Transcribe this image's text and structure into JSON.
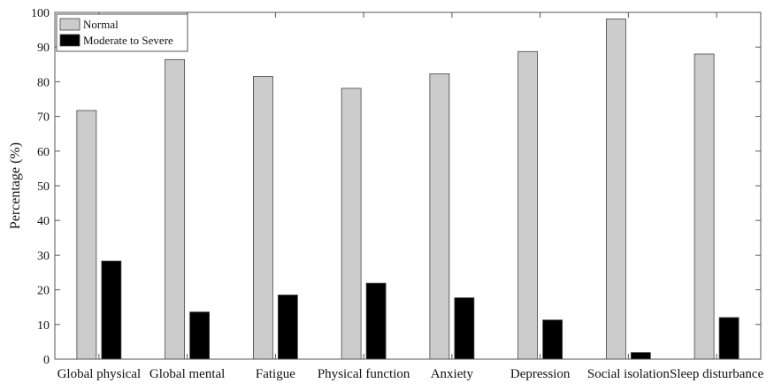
{
  "chart_data": {
    "type": "bar",
    "title": "",
    "xlabel": "",
    "ylabel": "Percentage (%)",
    "ylim": [
      0,
      100
    ],
    "yticks": [
      0,
      10,
      20,
      30,
      40,
      50,
      60,
      70,
      80,
      90,
      100
    ],
    "grid": false,
    "legend_position": "top-left",
    "categories": [
      "Global physical",
      "Global mental",
      "Fatigue",
      "Physical function",
      "Anxiety",
      "Depression",
      "Social isolation",
      "Sleep disturbance"
    ],
    "series": [
      {
        "name": "Normal",
        "color": "#cccccc",
        "values": [
          71.7,
          86.4,
          81.5,
          78.1,
          82.3,
          88.7,
          98.1,
          88.0
        ]
      },
      {
        "name": "Moderate to Severe",
        "color": "#000000",
        "values": [
          28.3,
          13.6,
          18.5,
          21.9,
          17.7,
          11.3,
          1.9,
          12.0
        ]
      }
    ]
  }
}
